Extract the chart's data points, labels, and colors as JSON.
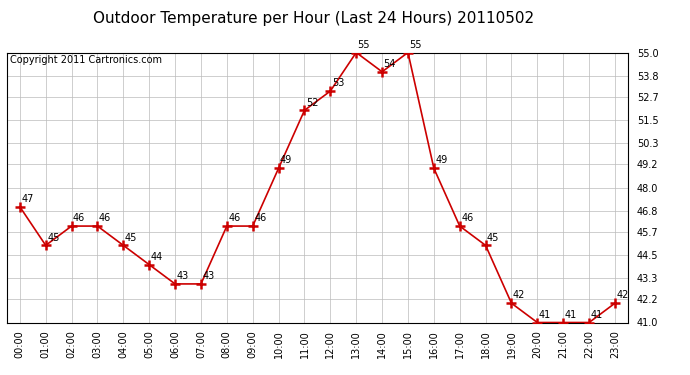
{
  "title": "Outdoor Temperature per Hour (Last 24 Hours) 20110502",
  "copyright_text": "Copyright 2011 Cartronics.com",
  "hours": [
    "00:00",
    "01:00",
    "02:00",
    "03:00",
    "04:00",
    "05:00",
    "06:00",
    "07:00",
    "08:00",
    "09:00",
    "10:00",
    "11:00",
    "12:00",
    "13:00",
    "14:00",
    "15:00",
    "16:00",
    "17:00",
    "18:00",
    "19:00",
    "20:00",
    "21:00",
    "22:00",
    "23:00"
  ],
  "temps": [
    47,
    45,
    46,
    46,
    45,
    44,
    43,
    43,
    46,
    46,
    49,
    52,
    53,
    55,
    54,
    55,
    49,
    46,
    45,
    42,
    41,
    41,
    41,
    42
  ],
  "line_color": "#cc0000",
  "marker": "+",
  "marker_color": "#cc0000",
  "bg_color": "#ffffff",
  "grid_color": "#bbbbbb",
  "ylim_min": 41.0,
  "ylim_max": 55.0,
  "yticks": [
    41.0,
    42.2,
    43.3,
    44.5,
    45.7,
    46.8,
    48.0,
    49.2,
    50.3,
    51.5,
    52.7,
    53.8,
    55.0
  ],
  "title_fontsize": 11,
  "label_fontsize": 7,
  "copyright_fontsize": 7,
  "tick_fontsize": 7,
  "ytick_fontsize": 7
}
